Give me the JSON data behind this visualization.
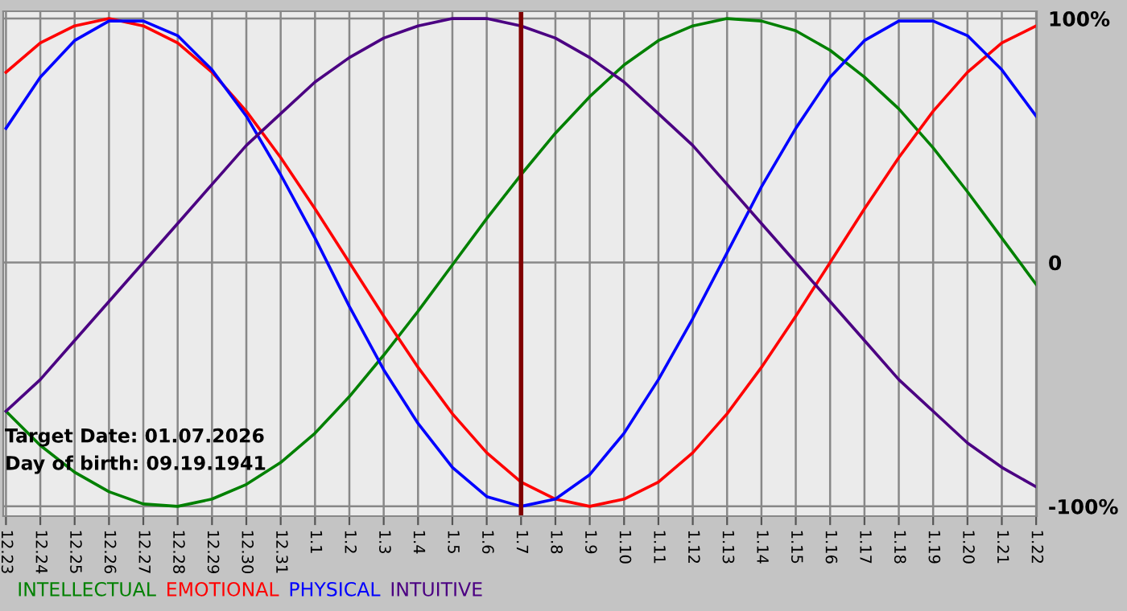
{
  "chart_data": {
    "type": "line",
    "categories": [
      "12.23",
      "12.24",
      "12.25",
      "12.26",
      "12.27",
      "12.28",
      "12.29",
      "12.30",
      "12.31",
      "1.1",
      "1.2",
      "1.3",
      "1.4",
      "1.5",
      "1.6",
      "1.7",
      "1.8",
      "1.9",
      "1.10",
      "1.11",
      "1.12",
      "1.13",
      "1.14",
      "1.15",
      "1.16",
      "1.17",
      "1.18",
      "1.19",
      "1.20",
      "1.21",
      "1.22"
    ],
    "series": [
      {
        "name": "INTELLECTUAL",
        "color": "#008000",
        "values": [
          -61,
          -75,
          -86,
          -94,
          -99,
          -100,
          -97,
          -91,
          -82,
          -70,
          -55,
          -38,
          -20,
          -1,
          18,
          36,
          53,
          68,
          81,
          91,
          97,
          100,
          99,
          95,
          87,
          76,
          63,
          47,
          29,
          10,
          -9
        ]
      },
      {
        "name": "EMOTIONAL",
        "color": "#ff0000",
        "values": [
          78,
          90,
          97,
          100,
          97,
          90,
          78,
          62,
          43,
          22,
          0,
          -22,
          -43,
          -62,
          -78,
          -90,
          -97,
          -100,
          -97,
          -90,
          -78,
          -62,
          -43,
          -22,
          0,
          22,
          43,
          62,
          78,
          90,
          97
        ]
      },
      {
        "name": "PHYSICAL",
        "color": "#0000ff",
        "values": [
          55,
          76,
          91,
          99,
          99,
          93,
          79,
          60,
          36,
          10,
          -18,
          -44,
          -66,
          -84,
          -96,
          -100,
          -97,
          -87,
          -70,
          -48,
          -23,
          4,
          31,
          55,
          76,
          91,
          99,
          99,
          93,
          79,
          60
        ]
      },
      {
        "name": "INTUITIVE",
        "color": "#4b0082",
        "values": [
          -61,
          -48,
          -32,
          -16,
          0,
          16,
          32,
          48,
          61,
          74,
          84,
          92,
          97,
          100,
          100,
          97,
          92,
          84,
          74,
          61,
          48,
          32,
          16,
          0,
          -16,
          -32,
          -48,
          -61,
          -74,
          -84,
          -92
        ]
      }
    ],
    "ylim": [
      -104,
      103
    ],
    "yticks": [
      {
        "value": -100,
        "label": "-100%"
      },
      0,
      {
        "value": 100,
        "label": "100%"
      }
    ],
    "ref_lines": [
      {
        "axis": "x",
        "value": "1.7",
        "color": "#800000"
      }
    ],
    "annotations": [
      "Target Date: 01.07.2026",
      "Day of birth: 09.19.1941"
    ],
    "grid": true,
    "legend": "bottom left",
    "marker": "none",
    "line_style": "solid"
  }
}
